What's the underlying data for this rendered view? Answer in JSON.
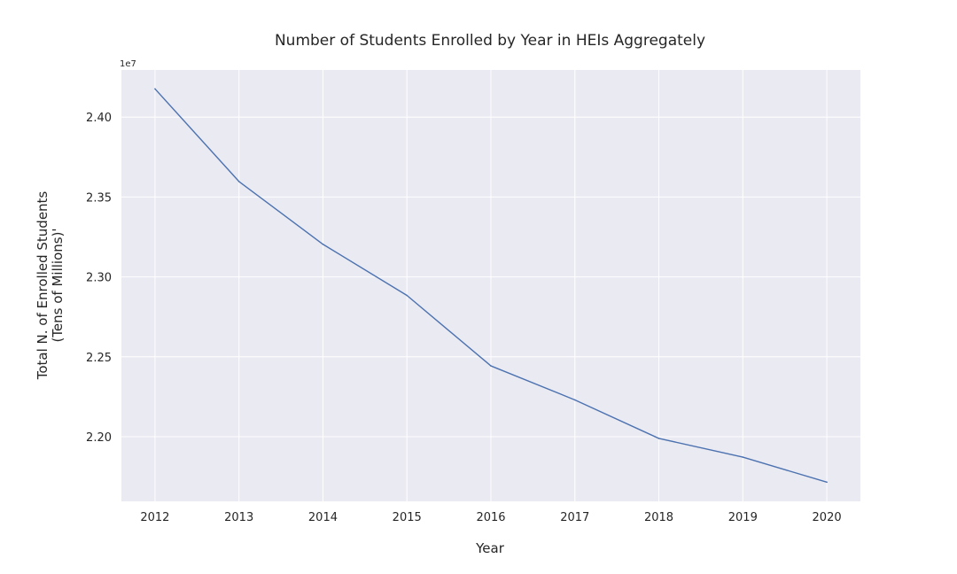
{
  "chart_data": {
    "type": "line",
    "title": "Number of Students Enrolled by Year in HEIs Aggregately",
    "xlabel": "Year",
    "ylabel_lines": [
      "Total N. of Enrolled Students",
      "(Tens of Millions)'"
    ],
    "y_offset_label": "1e7",
    "x": [
      2012,
      2013,
      2014,
      2015,
      2016,
      2017,
      2018,
      2019,
      2020
    ],
    "x_tick_labels": [
      "2012",
      "2013",
      "2014",
      "2015",
      "2016",
      "2017",
      "2018",
      "2019",
      "2020"
    ],
    "xlim": [
      2011.6,
      2020.4
    ],
    "y_ticks": [
      2.2,
      2.25,
      2.3,
      2.35,
      2.4
    ],
    "y_tick_labels": [
      "2.20",
      "2.25",
      "2.30",
      "2.35",
      "2.40"
    ],
    "ylim": [
      2.1595,
      2.4295
    ],
    "series": [
      {
        "values": [
          2.4177,
          2.3597,
          2.3204,
          2.2884,
          2.2443,
          2.223,
          2.1989,
          2.1872,
          2.1715
        ]
      }
    ],
    "grid": true,
    "colors": {
      "plot_background": "#eaeaf2",
      "grid": "#ffffff",
      "line": "#4c72b0",
      "text": "#262626"
    }
  }
}
